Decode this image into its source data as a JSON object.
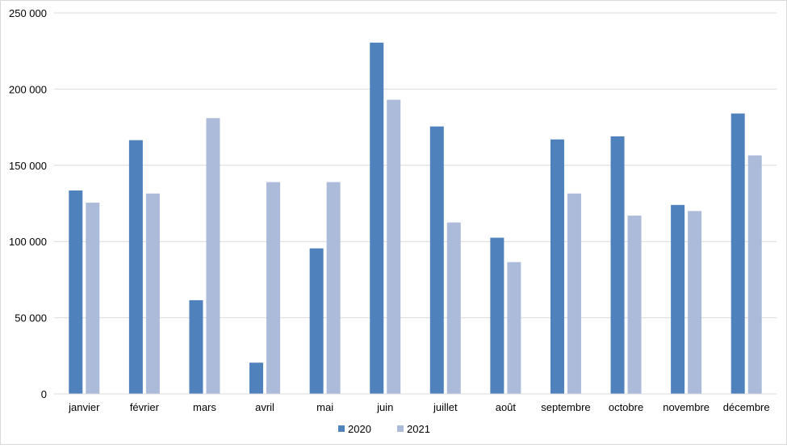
{
  "chart_data": {
    "type": "bar",
    "title": "",
    "xlabel": "",
    "ylabel": "",
    "ylim": [
      0,
      250000
    ],
    "yticks": [
      0,
      50000,
      100000,
      150000,
      200000,
      250000
    ],
    "ytick_labels": [
      "0",
      "50 000",
      "100 000",
      "150 000",
      "200 000",
      "250 000"
    ],
    "grid": "horizontal",
    "legend_position": "bottom",
    "categories": [
      "janvier",
      "février",
      "mars",
      "avril",
      "mai",
      "juin",
      "juillet",
      "août",
      "septembre",
      "octobre",
      "novembre",
      "décembre"
    ],
    "series": [
      {
        "name": "2020",
        "color": "#4f81bd",
        "values": [
          133500,
          166500,
          61500,
          20500,
          95500,
          230500,
          175500,
          102500,
          167000,
          169000,
          124000,
          184000
        ]
      },
      {
        "name": "2021",
        "color": "#adbbda",
        "values": [
          125500,
          131500,
          181000,
          139000,
          139000,
          193000,
          112500,
          86500,
          131500,
          117000,
          120000,
          156500
        ]
      }
    ]
  }
}
